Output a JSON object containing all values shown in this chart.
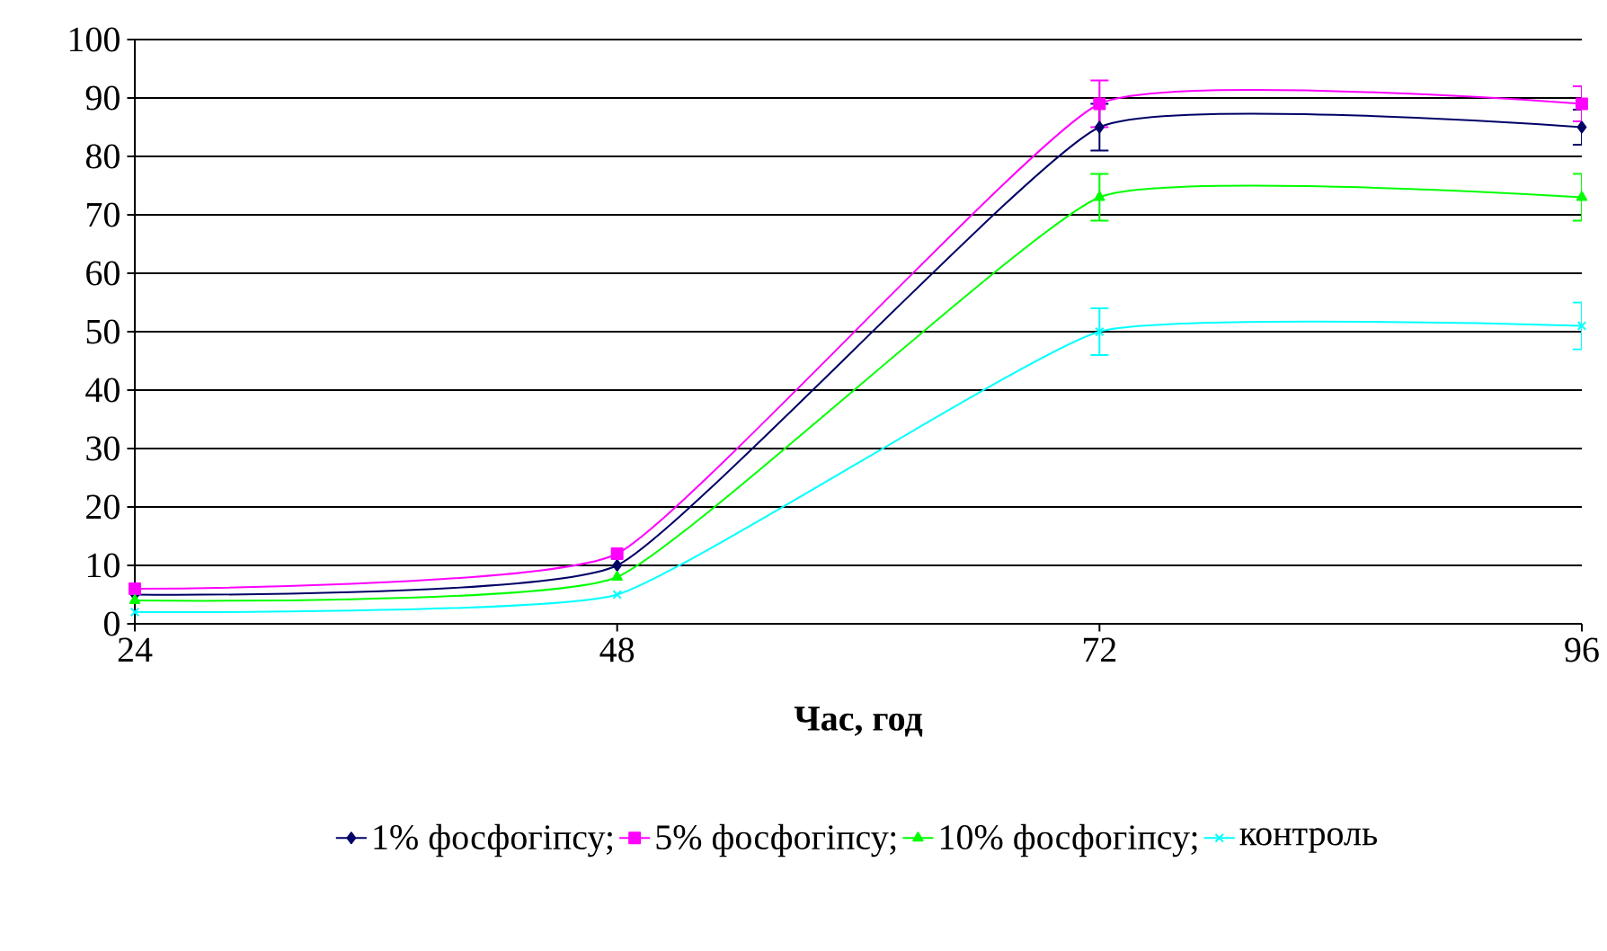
{
  "chart_data": {
    "type": "line",
    "xlabel": "Час, год",
    "x": [
      24,
      48,
      72,
      96
    ],
    "xlim": [
      24,
      96
    ],
    "xticks": [
      24,
      48,
      72,
      96
    ],
    "ylim": [
      0,
      100
    ],
    "yticks": [
      0,
      10,
      20,
      30,
      40,
      50,
      60,
      70,
      80,
      90,
      100
    ],
    "grid": "y",
    "legend": "bottom",
    "line_style": "solid",
    "series": [
      {
        "name": "1% фосфогіпсу;",
        "color": "#000066",
        "marker": "diamond",
        "values": [
          5,
          10,
          85,
          85
        ],
        "errors": [
          null,
          null,
          4,
          3
        ]
      },
      {
        "name": "5% фосфогіпсу;",
        "color": "#ff00ff",
        "marker": "square",
        "values": [
          6,
          12,
          89,
          89
        ],
        "errors": [
          null,
          null,
          4,
          3
        ]
      },
      {
        "name": "10% фосфогіпсу;",
        "color": "#00ff00",
        "marker": "triangle",
        "values": [
          4,
          8,
          73,
          73
        ],
        "errors": [
          null,
          null,
          4,
          4
        ]
      },
      {
        "name": "контроль",
        "color": "#00ffff",
        "marker": "cross",
        "values": [
          2,
          5,
          50,
          51
        ],
        "errors": [
          null,
          null,
          4,
          4
        ]
      }
    ]
  }
}
